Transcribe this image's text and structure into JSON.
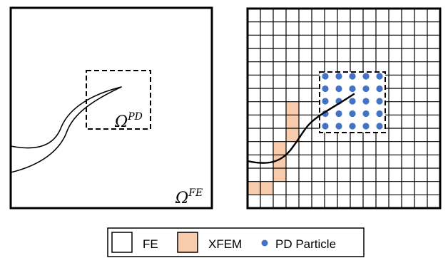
{
  "left_panel": {
    "pd_label": {
      "base": "Ω",
      "sup": "PD"
    },
    "fe_label": {
      "base": "Ω",
      "sup": "FE"
    }
  },
  "right_panel": {
    "grid_cells": 15,
    "xfem_cells": [
      [
        0,
        13
      ],
      [
        1,
        13
      ],
      [
        2,
        12
      ],
      [
        2,
        11
      ],
      [
        2,
        10
      ],
      [
        3,
        9
      ],
      [
        3,
        8
      ],
      [
        3,
        7
      ]
    ],
    "pd_particle_rows": 5,
    "pd_particle_cols": 5
  },
  "legend": {
    "fe_label": "FE",
    "xfem_label": "XFEM",
    "pd_label": "PD Particle"
  },
  "colors": {
    "outline": "#000000",
    "xfem_fill": "#f8cbad",
    "pd_particle": "#4472c4"
  }
}
